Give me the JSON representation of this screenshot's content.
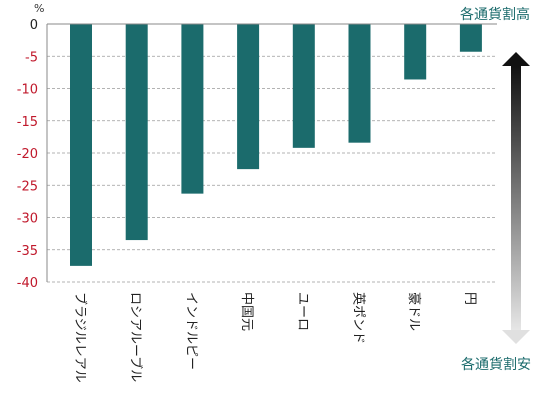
{
  "chart_data": {
    "type": "bar",
    "unit": "%",
    "categories": [
      "ブラジルレアル",
      "ロシアルーブル",
      "インドルピー",
      "中国元",
      "ユーロ",
      "英ポンド",
      "豪ドル",
      "円"
    ],
    "values": [
      -37.5,
      -33.5,
      -26.3,
      -22.5,
      -19.2,
      -18.4,
      -8.6,
      -4.3
    ],
    "yticks": [
      0,
      -5,
      -10,
      -15,
      -20,
      -25,
      -30,
      -35,
      -40
    ],
    "ylim": [
      -40,
      0
    ],
    "grid": true,
    "annotations": {
      "top": "各通貨割高",
      "bottom": "各通貨割安"
    }
  },
  "colors": {
    "bar": "#1b6b6c",
    "positive_tick": "#222222",
    "negative_tick": "#c0182b",
    "annotation": "#1b6b6c",
    "grid": "#9a9a9a"
  }
}
